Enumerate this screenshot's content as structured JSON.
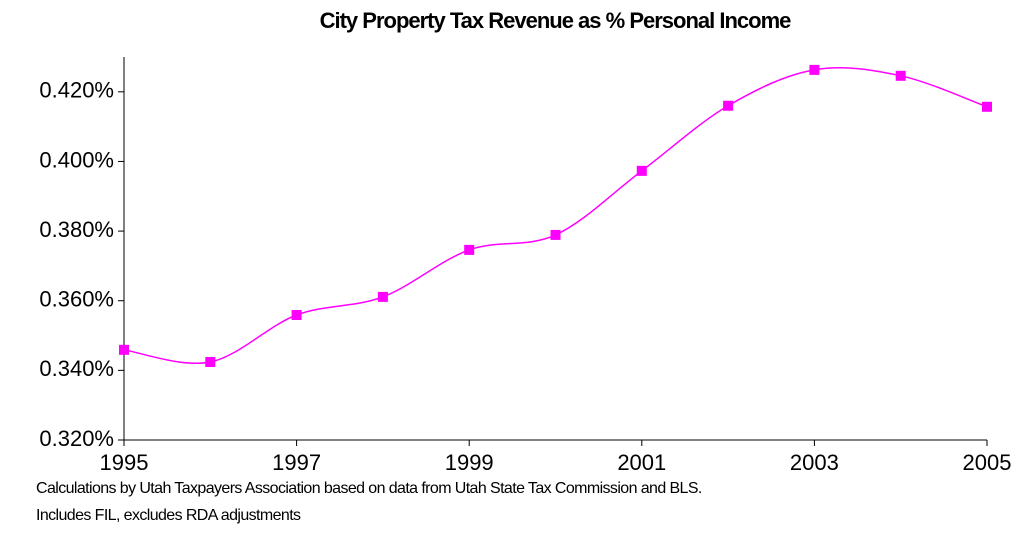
{
  "chart_data": {
    "type": "line",
    "title": "City Property Tax Revenue as % Personal Income",
    "x": [
      1995,
      1996,
      1997,
      1998,
      1999,
      2000,
      2001,
      2002,
      2003,
      2004,
      2005
    ],
    "series": [
      {
        "name": "City Property Tax Revenue as % Personal Income",
        "color": "#ff00ff",
        "values": [
          0.3459,
          0.3424,
          0.3559,
          0.3611,
          0.3746,
          0.3789,
          0.3973,
          0.416,
          0.4263,
          0.4246,
          0.4157
        ]
      }
    ],
    "xlim": [
      1995,
      2005
    ],
    "xticks": [
      1995,
      1997,
      1999,
      2001,
      2003,
      2005
    ],
    "ylim": [
      0.32,
      0.43
    ],
    "yticks": [
      {
        "value": 0.32,
        "label": "0.320%"
      },
      {
        "value": 0.34,
        "label": "0.340%"
      },
      {
        "value": 0.36,
        "label": "0.360%"
      },
      {
        "value": 0.38,
        "label": "0.380%"
      },
      {
        "value": 0.4,
        "label": "0.400%"
      },
      {
        "value": 0.42,
        "label": "0.420%"
      }
    ],
    "grid": false,
    "smooth": true,
    "notes": [
      "Calculations by Utah Taxpayers Association based on data from Utah State Tax Commission and BLS.",
      "Includes FIL, excludes RDA adjustments"
    ]
  }
}
